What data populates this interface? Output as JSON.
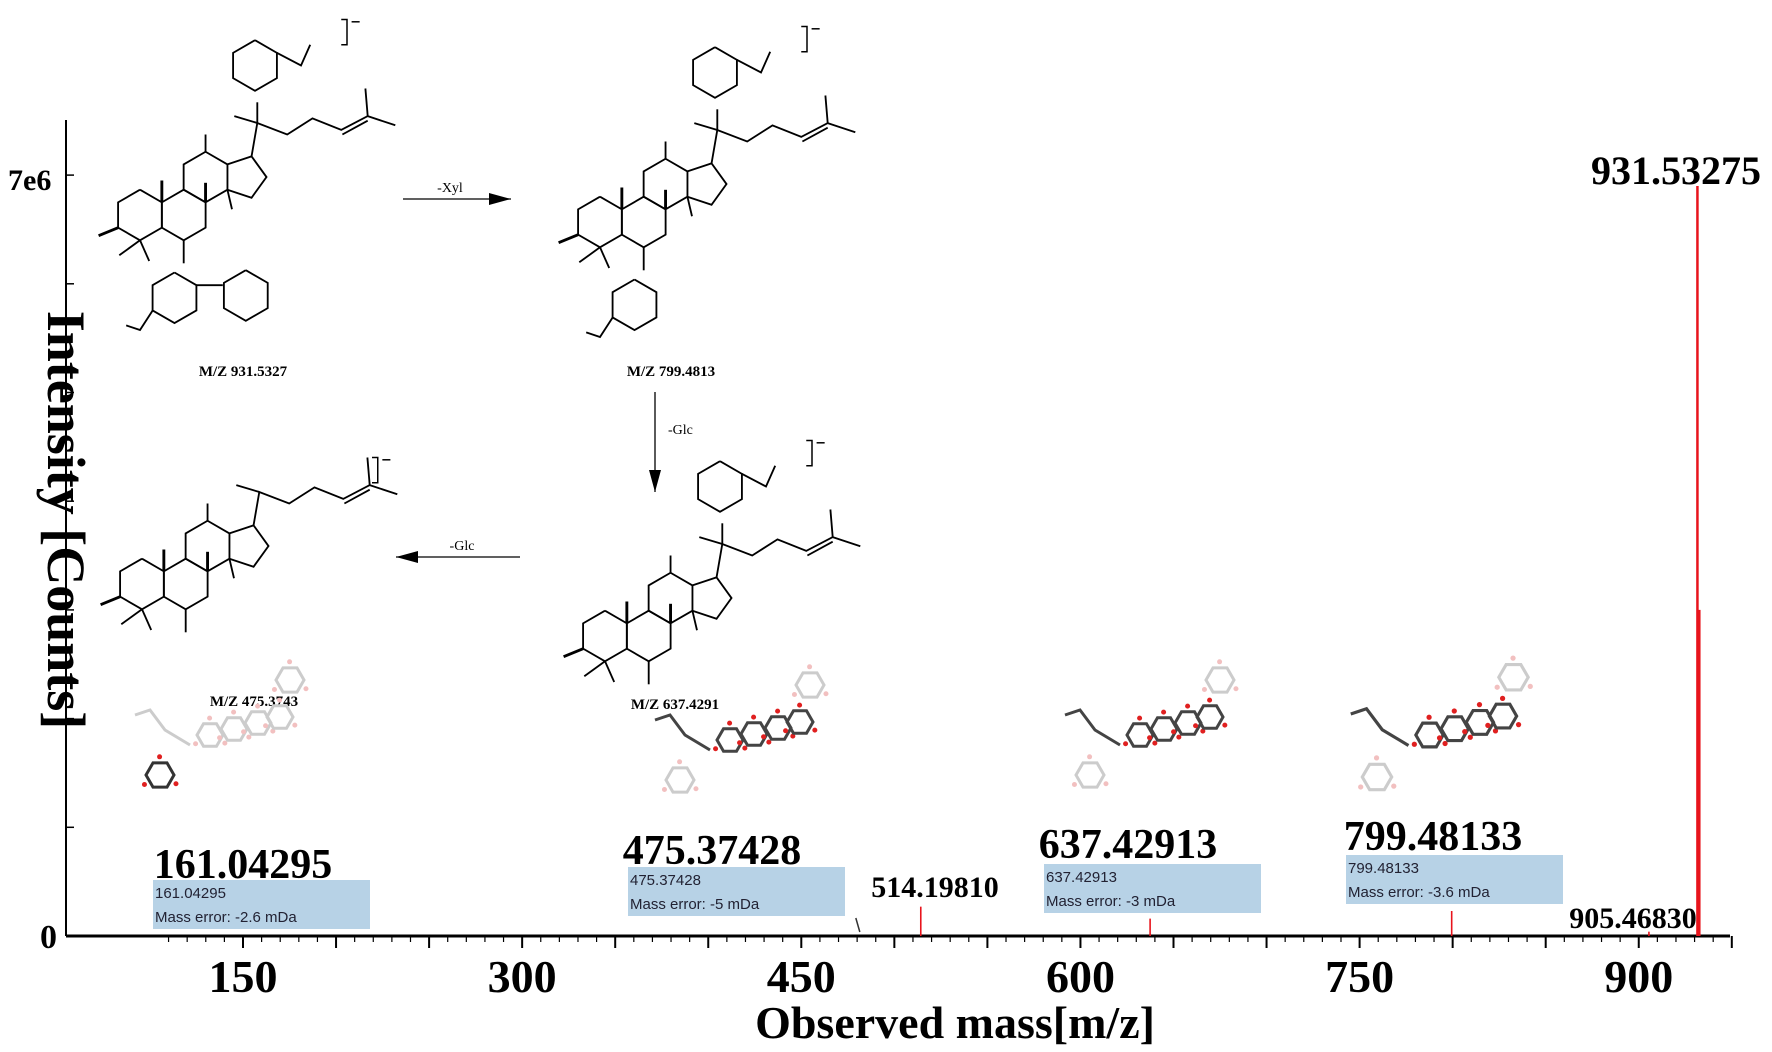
{
  "chart_data": {
    "type": "bar",
    "xlabel": "Observed mass[m/z]",
    "ylabel": "Intensity [Counts]",
    "xlim": [
      100,
      950
    ],
    "ylim": [
      0,
      7000000
    ],
    "x_ticks": [
      150,
      300,
      450,
      600,
      750,
      900
    ],
    "y_tick_labels": [
      {
        "value": 0,
        "label": "0"
      },
      {
        "value": 7000000,
        "label": "7e6"
      }
    ],
    "grid": false,
    "peak_color": "#e8141c",
    "peaks": [
      {
        "mz": 514.1981,
        "intensity": 270000
      },
      {
        "mz": 637.42913,
        "intensity": 160000
      },
      {
        "mz": 799.48133,
        "intensity": 230000
      },
      {
        "mz": 905.4683,
        "intensity": 40000
      },
      {
        "mz": 931.53275,
        "intensity": 6900000
      },
      {
        "mz": 932.54,
        "intensity": 3000000
      }
    ],
    "peak_labels": [
      {
        "text": "161.04295",
        "size": "large"
      },
      {
        "text": "475.37428",
        "size": "large"
      },
      {
        "text": "514.19810",
        "size": "medium"
      },
      {
        "text": "637.42913",
        "size": "large"
      },
      {
        "text": "799.48133",
        "size": "large"
      },
      {
        "text": "905.46830",
        "size": "medium"
      },
      {
        "text": "931.53275",
        "size": "large"
      }
    ],
    "annotation_box_color": "#b7d2e6",
    "annotation_boxes": [
      {
        "mass": "161.04295",
        "error": "Mass error: -2.6 mDa"
      },
      {
        "mass": "475.37428",
        "error": "Mass error: -5 mDa"
      },
      {
        "mass": "637.42913",
        "error": "Mass error: -3 mDa"
      },
      {
        "mass": "799.48133",
        "error": "Mass error: -3.6 mDa"
      }
    ]
  },
  "pathway": {
    "structures": [
      {
        "label": "M/Z 931.5327"
      },
      {
        "label": "M/Z 799.4813"
      },
      {
        "label": "M/Z 637.4291"
      },
      {
        "label": "M/Z 475.3743"
      }
    ],
    "arrows": [
      {
        "label": "-Xyl",
        "direction": "right"
      },
      {
        "label": "-Glc",
        "direction": "down"
      },
      {
        "label": "-Glc",
        "direction": "left"
      }
    ]
  }
}
